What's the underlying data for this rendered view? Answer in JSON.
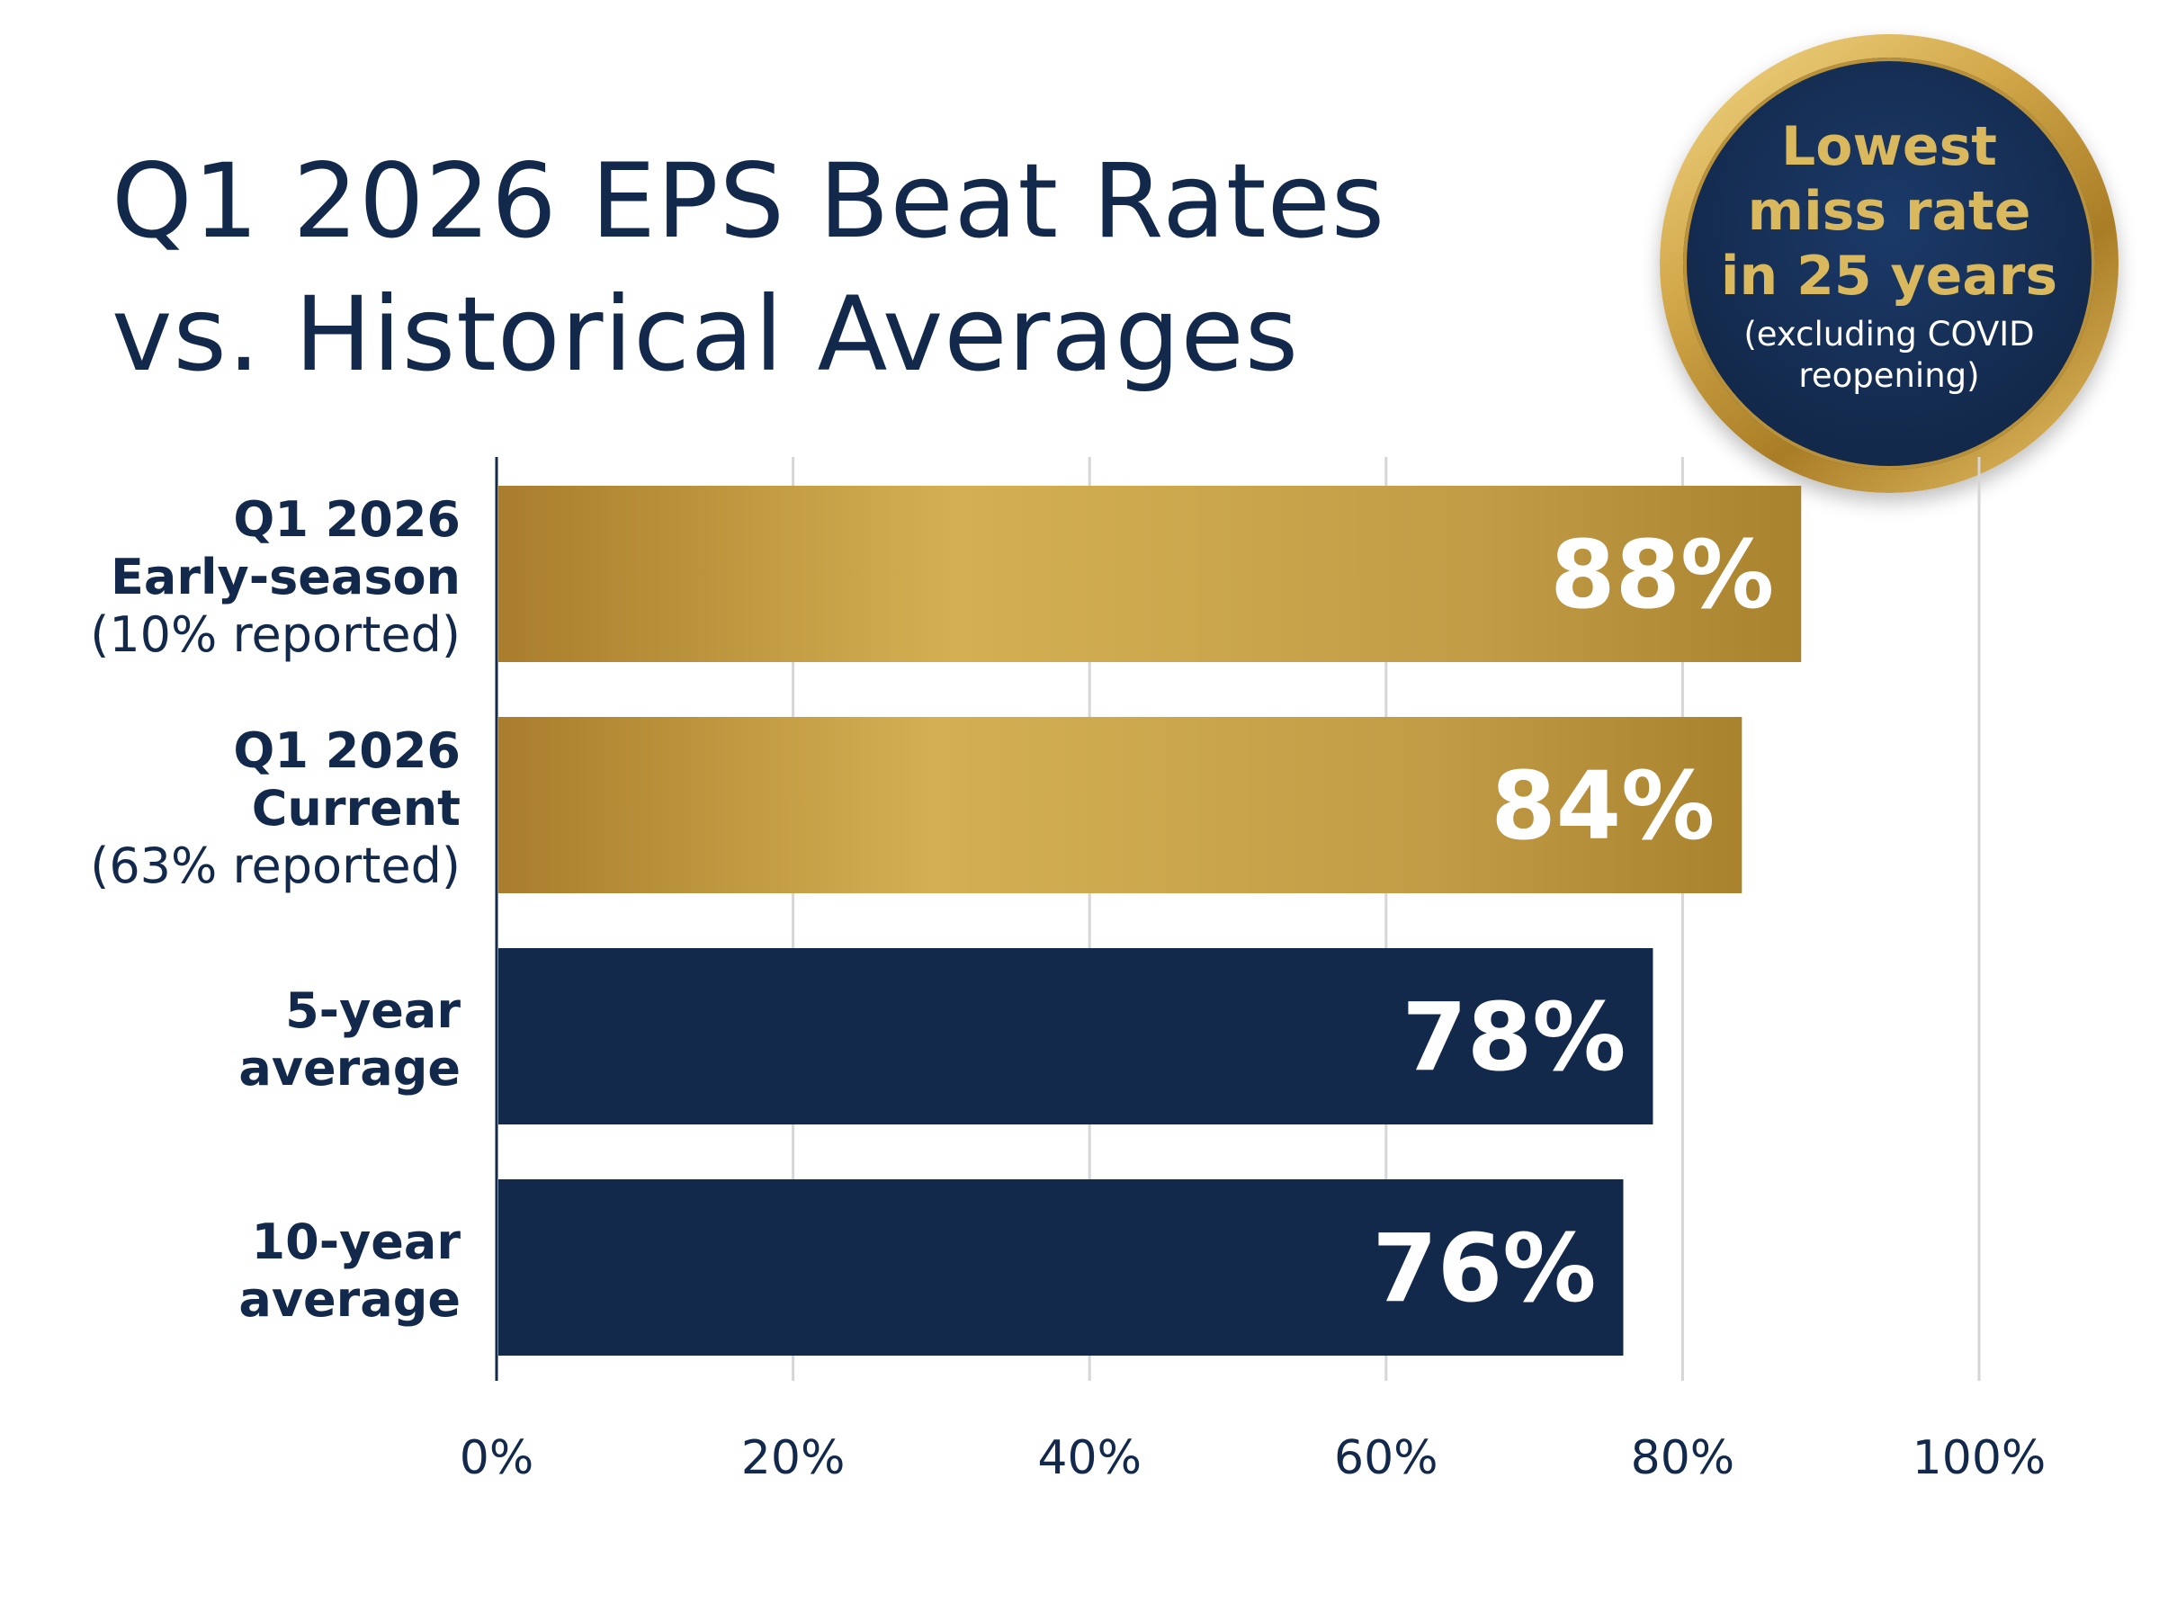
{
  "chart_data": {
    "type": "bar",
    "orientation": "horizontal",
    "title": "Q1 2026 EPS Beat Rates vs. Historical Averages",
    "title_lines": [
      "Q1 2026 EPS Beat Rates",
      "vs. Historical Averages"
    ],
    "categories": [
      {
        "lines": [
          "Q1 2026",
          "Early-season"
        ],
        "note": "(10% reported)"
      },
      {
        "lines": [
          "Q1 2026",
          "Current"
        ],
        "note": "(63% reported)"
      },
      {
        "lines": [
          "5-year",
          "average"
        ],
        "note": ""
      },
      {
        "lines": [
          "10-year",
          "average"
        ],
        "note": ""
      }
    ],
    "values": [
      88,
      84,
      78,
      76
    ],
    "value_labels": [
      "88%",
      "84%",
      "78%",
      "76%"
    ],
    "bar_colors": [
      "#c4a04a",
      "#c4a04a",
      "#13294b",
      "#13294b"
    ],
    "xlim": [
      0,
      100
    ],
    "xticks": [
      0,
      20,
      40,
      60,
      80,
      100
    ],
    "xtick_labels": [
      "0%",
      "20%",
      "40%",
      "60%",
      "80%",
      "100%"
    ],
    "grid": "vertical",
    "xlabel": "",
    "ylabel": "",
    "annotation": {
      "headline": "Lowest miss rate in 25 years",
      "note": "(excluding COVID reopening)",
      "placement": "top-right"
    }
  },
  "colors": {
    "navy": "#13294b",
    "gold": "#c4a04a",
    "badge_text": "#d9b85e",
    "grid": "#d6d6d6"
  }
}
